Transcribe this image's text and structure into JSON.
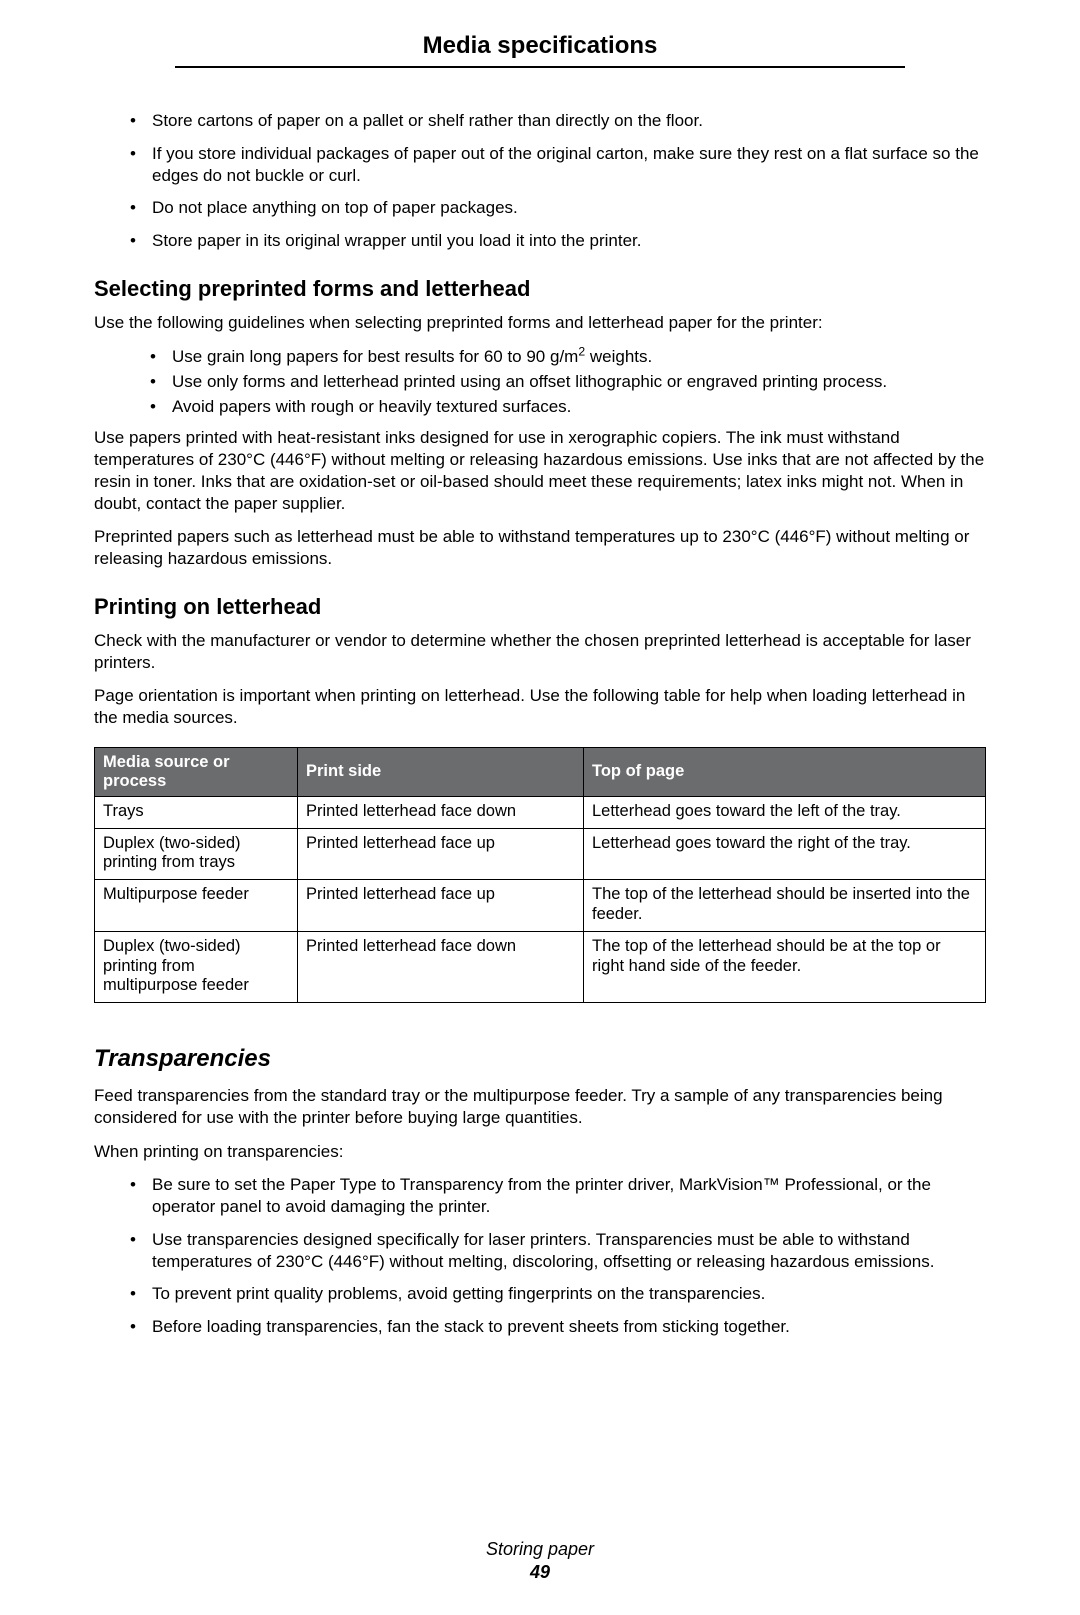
{
  "header": {
    "title": "Media specifications"
  },
  "intro_bullets": [
    "Store cartons of paper on a pallet or shelf rather than directly on the floor.",
    "If you store individual packages of paper out of the original carton, make sure they rest on a flat surface so the edges do not buckle or curl.",
    "Do not place anything on top of paper packages.",
    "Store paper in its original wrapper until you load it into the printer."
  ],
  "section1": {
    "heading": "Selecting preprinted forms and letterhead",
    "intro": "Use the following guidelines when selecting preprinted forms and letterhead paper for the printer:",
    "bullets_prefix0": "Use grain long papers for best results for 60 to 90 g/m",
    "bullets_suffix0": " weights.",
    "bullets1": "Use only forms and letterhead printed using an offset lithographic or engraved printing process.",
    "bullets2": "Avoid papers with rough or heavily textured surfaces.",
    "para1": "Use papers printed with heat-resistant inks designed for use in xerographic copiers. The ink must withstand temperatures of 230°C (446°F) without melting or releasing hazardous emissions. Use inks that are not affected by the resin in toner. Inks that are oxidation-set or oil-based should meet these requirements; latex inks might not. When in doubt, contact the paper supplier.",
    "para2": "Preprinted papers such as letterhead must be able to withstand temperatures up to 230°C (446°F) without melting or releasing hazardous emissions."
  },
  "section2": {
    "heading": "Printing on letterhead",
    "para1": "Check with the manufacturer or vendor to determine whether the chosen preprinted letterhead is acceptable for laser printers.",
    "para2": "Page orientation is important when printing on letterhead. Use the following table for help when loading letterhead in the media sources."
  },
  "table": {
    "headers": [
      "Media source or process",
      "Print side",
      "Top of page"
    ],
    "rows": [
      [
        "Trays",
        "Printed letterhead face down",
        "Letterhead goes toward the left of the tray."
      ],
      [
        "Duplex (two-sided) printing from trays",
        "Printed letterhead face up",
        "Letterhead goes toward the right of the tray."
      ],
      [
        "Multipurpose feeder",
        "Printed letterhead face up",
        "The top of the letterhead should be inserted into the feeder."
      ],
      [
        "Duplex (two-sided) printing from multipurpose feeder",
        "Printed letterhead face down",
        "The top of the letterhead should be at the top or right hand side of the feeder."
      ]
    ]
  },
  "section3": {
    "heading": "Transparencies",
    "para1": "Feed transparencies from the standard tray or the multipurpose feeder. Try a sample of any transparencies being considered for use with the printer before buying large quantities.",
    "para2": "When printing on transparencies:",
    "bullets": [
      "Be sure to set the Paper Type to Transparency from the printer driver, MarkVision™ Professional, or the operator panel to avoid damaging the printer.",
      "Use transparencies designed specifically for laser printers. Transparencies must be able to withstand temperatures of 230°C (446°F) without melting, discoloring, offsetting or releasing hazardous emissions.",
      "To prevent print quality problems, avoid getting fingerprints on the transparencies.",
      "Before loading transparencies, fan the stack to prevent sheets from sticking together."
    ]
  },
  "footer": {
    "section_name": "Storing paper",
    "page_number": "49"
  }
}
